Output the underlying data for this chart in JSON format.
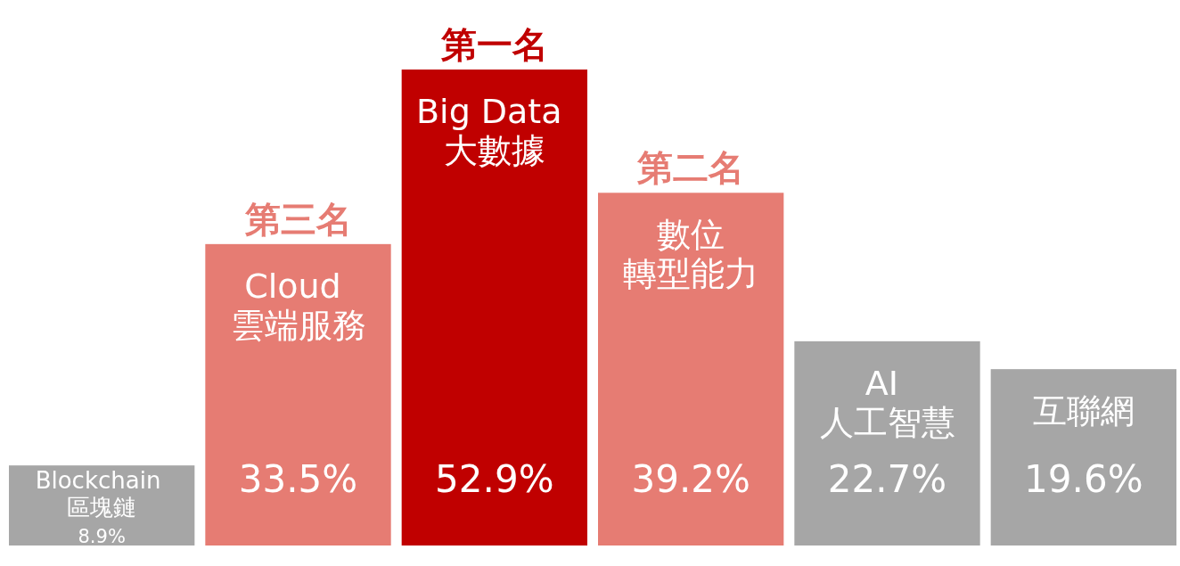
{
  "chart_data": {
    "type": "bar",
    "categories": [
      "Blockchain 區塊鏈",
      "Cloud 雲端服務",
      "Big Data 大數據",
      "數位轉型能力",
      "AI 人工智慧",
      "互聯網"
    ],
    "values": [
      8.9,
      33.5,
      52.9,
      39.2,
      22.7,
      19.6
    ],
    "colors": [
      "#a6a6a6",
      "#e67c73",
      "#c00000",
      "#e67c73",
      "#a6a6a6",
      "#a6a6a6"
    ],
    "value_labels": [
      "8.9%",
      "33.5%",
      "52.9%",
      "39.2%",
      "22.7%",
      "19.6%"
    ],
    "annotations": [
      {
        "text": "第一名",
        "x": "Big Data 大數據",
        "y": 52.9
      },
      {
        "text": "第二名",
        "x": "數位轉型能力",
        "y": 39.2
      },
      {
        "text": "第三名",
        "x": "Cloud 雲端服務",
        "y": 33.5
      }
    ]
  }
}
